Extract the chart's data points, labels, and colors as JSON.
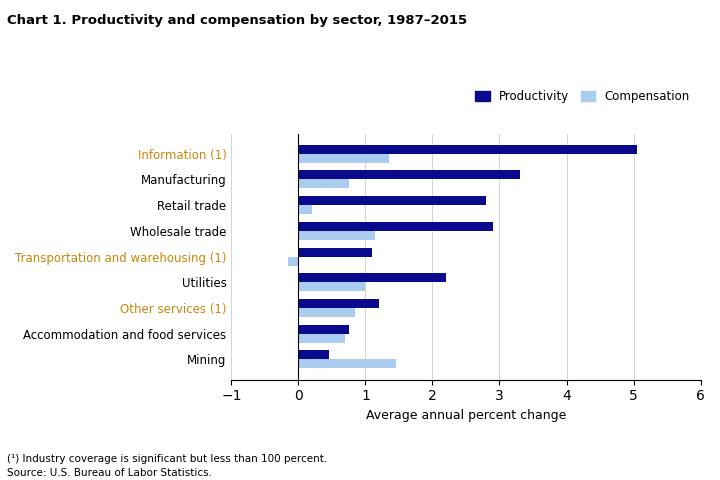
{
  "title": "Chart 1. Productivity and compensation by sector, 1987–2015",
  "categories": [
    "Information (1)",
    "Manufacturing",
    "Retail trade",
    "Wholesale trade",
    "Transportation and warehousing (1)",
    "Utilities",
    "Other services (1)",
    "Accommodation and food services",
    "Mining"
  ],
  "productivity": [
    5.05,
    3.3,
    2.8,
    2.9,
    1.1,
    2.2,
    1.2,
    0.75,
    0.45
  ],
  "compensation": [
    1.35,
    0.75,
    0.2,
    1.15,
    -0.15,
    1.0,
    0.85,
    0.7,
    1.45
  ],
  "highlighted_categories": [
    "Information (1)",
    "Transportation and warehousing (1)",
    "Other services (1)"
  ],
  "highlight_color": "#C8860A",
  "productivity_color": "#0A0A8C",
  "compensation_color": "#AACCEE",
  "xlabel": "Average annual percent change",
  "xlim": [
    -1,
    6
  ],
  "xticks": [
    -1,
    0,
    1,
    2,
    3,
    4,
    5,
    6
  ],
  "footnote_1": "(¹) Industry coverage is significant but less than 100 percent.",
  "footnote_2": "Source: U.S. Bureau of Labor Statistics.",
  "legend_productivity": "Productivity",
  "legend_compensation": "Compensation"
}
